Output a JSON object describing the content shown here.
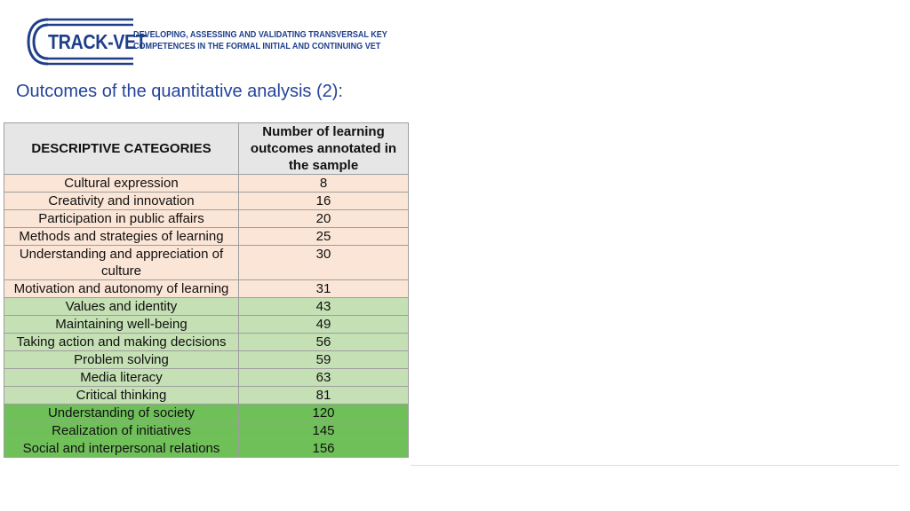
{
  "logo": {
    "name": "TRACK-VET",
    "tagline_line1": "DEVELOPING, ASSESSING AND VALIDATING TRANSVERSAL KEY",
    "tagline_line2": "COMPETENCES IN THE FORMAL INITIAL AND CONTINUING VET",
    "color": "#1e3f8a"
  },
  "title": "Outcomes of the quantitative analysis (2):",
  "table": {
    "headers": [
      "DESCRIPTIVE CATEGORIES",
      "Number of learning outcomes annotated in the sample"
    ],
    "rows": [
      {
        "category": "Cultural expression",
        "count": "8",
        "group": "peach"
      },
      {
        "category": "Creativity and innovation",
        "count": "16",
        "group": "peach"
      },
      {
        "category": "Participation in public affairs",
        "count": "20",
        "group": "peach"
      },
      {
        "category": "Methods and strategies of learning",
        "count": "25",
        "group": "peach"
      },
      {
        "category": "Understanding and appreciation of culture",
        "count": "30",
        "group": "peach"
      },
      {
        "category": "Motivation and autonomy of learning",
        "count": "31",
        "group": "peach"
      },
      {
        "category": "Values and identity",
        "count": "43",
        "group": "lightgreen"
      },
      {
        "category": "Maintaining well-being",
        "count": "49",
        "group": "lightgreen"
      },
      {
        "category": "Taking action and making decisions",
        "count": "56",
        "group": "lightgreen"
      },
      {
        "category": "Problem solving",
        "count": "59",
        "group": "lightgreen"
      },
      {
        "category": "Media literacy",
        "count": "63",
        "group": "lightgreen"
      },
      {
        "category": "Critical thinking",
        "count": "81",
        "group": "lightgreen"
      },
      {
        "category": "Understanding of society",
        "count": "120",
        "group": "green"
      },
      {
        "category": "Realization of initiatives",
        "count": "145",
        "group": "green"
      },
      {
        "category": "Social and interpersonal relations",
        "count": "156",
        "group": "green"
      }
    ],
    "colors": {
      "header": "#e7e6e6",
      "peach": "#fbe5d6",
      "lightgreen": "#c5e0b4",
      "green": "#70c05a"
    }
  }
}
